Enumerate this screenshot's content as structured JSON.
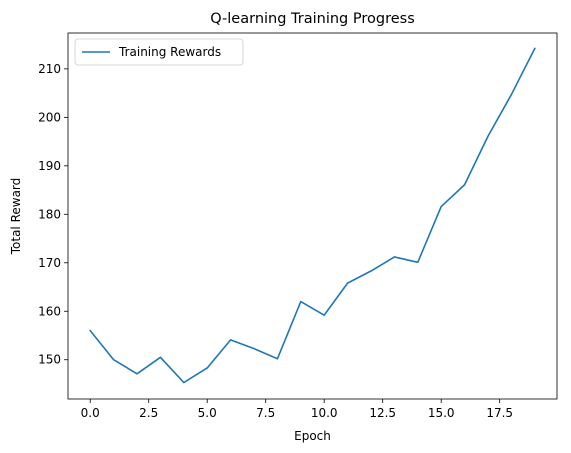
{
  "chart_data": {
    "type": "line",
    "title": "Q-learning Training Progress",
    "xlabel": "Epoch",
    "ylabel": "Total Reward",
    "xlim": [
      -0.95,
      19.95
    ],
    "ylim": [
      141.9,
      217.4
    ],
    "xticks": [
      0,
      2.5,
      5,
      7.5,
      10,
      12.5,
      15,
      17.5
    ],
    "xtick_labels": [
      "0.0",
      "2.5",
      "5.0",
      "7.5",
      "10.0",
      "12.5",
      "15.0",
      "17.5"
    ],
    "yticks": [
      150,
      160,
      170,
      180,
      190,
      200,
      210
    ],
    "ytick_labels": [
      "150",
      "160",
      "170",
      "180",
      "190",
      "200",
      "210"
    ],
    "grid": false,
    "legend": {
      "placement": "top-left"
    },
    "series": [
      {
        "name": "Training Rewards",
        "color": "#1f77b4",
        "x": [
          0,
          1,
          2,
          3,
          4,
          5,
          6,
          7,
          8,
          9,
          10,
          11,
          12,
          13,
          14,
          15,
          16,
          17,
          18,
          19
        ],
        "y": [
          156.0,
          150.0,
          147.1,
          150.5,
          145.3,
          148.3,
          154.1,
          152.3,
          150.2,
          162.0,
          159.2,
          165.8,
          168.3,
          171.2,
          170.1,
          181.6,
          186.1,
          196.1,
          204.7,
          214.2
        ]
      }
    ]
  }
}
